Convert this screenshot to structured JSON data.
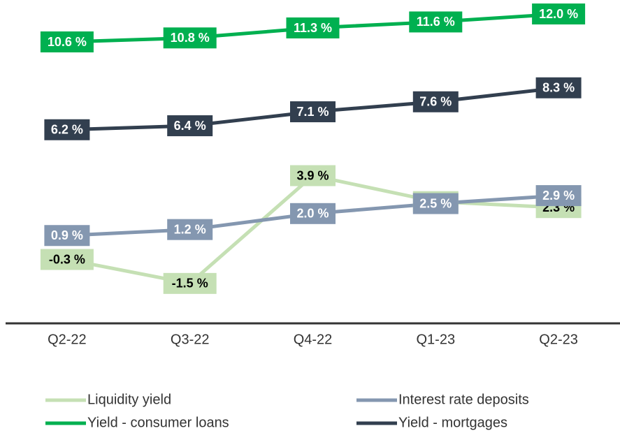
{
  "chart_data": {
    "type": "line",
    "categories": [
      "Q2-22",
      "Q3-22",
      "Q4-22",
      "Q1-23",
      "Q2-23"
    ],
    "series": [
      {
        "name": "Liquidity yield",
        "color": "#c5e0b4",
        "values": [
          -0.3,
          -1.5,
          3.9,
          2.6,
          2.3
        ],
        "value_labels": [
          "-0.3 %",
          "-1.5 %",
          "3.9 %",
          "2.6 %",
          "2.3 %"
        ]
      },
      {
        "name": "Interest rate deposits",
        "color": "#8497b0",
        "values": [
          0.9,
          1.2,
          2.0,
          2.5,
          2.9
        ],
        "value_labels": [
          "0.9 %",
          "1.2 %",
          "2.0 %",
          "2.5 %",
          "2.9 %"
        ]
      },
      {
        "name": "Yield - consumer loans",
        "color": "#00b050",
        "values": [
          10.6,
          10.8,
          11.3,
          11.6,
          12.0
        ],
        "value_labels": [
          "10.6 %",
          "10.8 %",
          "11.3 %",
          "11.6 %",
          "12.0 %"
        ]
      },
      {
        "name": "Yield - mortgages",
        "color": "#323f4f",
        "values": [
          6.2,
          6.4,
          7.1,
          7.6,
          8.3
        ],
        "value_labels": [
          "6.2 %",
          "6.4 %",
          "7.1 %",
          "7.6 %",
          "8.3 %"
        ]
      }
    ],
    "ylim": [
      -3.5,
      12.7
    ]
  }
}
